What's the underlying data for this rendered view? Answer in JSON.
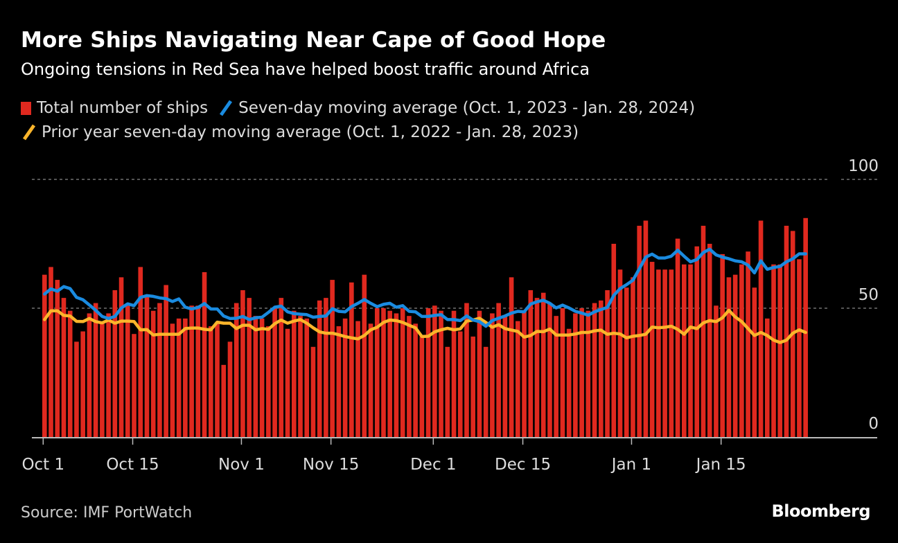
{
  "title": "More Ships Navigating Near Cape of Good Hope",
  "subtitle": "Ongoing tensions in Red Sea have helped boost traffic around Africa",
  "legend": [
    {
      "label": "Total number of ships",
      "color": "#e0291f",
      "icon": "square-swatch-icon"
    },
    {
      "label": "Seven-day moving average (Oct. 1, 2023 - Jan. 28, 2024)",
      "color": "#1a8be0",
      "icon": "line-swatch-icon"
    },
    {
      "label": "Prior year seven-day moving average (Oct. 1, 2022 - Jan. 28, 2023)",
      "color": "#fbb52b",
      "icon": "line-swatch-icon"
    }
  ],
  "source": "Source: IMF PortWatch",
  "brand": "Bloomberg",
  "chart_data": {
    "type": "bar",
    "title": "More Ships Navigating Near Cape of Good Hope",
    "subtitle": "Ongoing tensions in Red Sea have helped boost traffic around Africa",
    "xlabel": "",
    "ylabel": "",
    "ylim": [
      0,
      100
    ],
    "yticks": [
      0,
      50,
      100
    ],
    "ytick_labels": [
      "0",
      "50",
      "100"
    ],
    "grid": true,
    "legend_position": "top-left",
    "x_start": "Oct 1",
    "x_end": "Jan 28",
    "num_days": 120,
    "xticks": [
      {
        "day": 0,
        "label": "Oct 1"
      },
      {
        "day": 14,
        "label": "Oct 15"
      },
      {
        "day": 31,
        "label": "Nov 1"
      },
      {
        "day": 45,
        "label": "Nov 15"
      },
      {
        "day": 61,
        "label": "Dec 1"
      },
      {
        "day": 75,
        "label": "Dec 15"
      },
      {
        "day": 92,
        "label": "Jan 1"
      },
      {
        "day": 106,
        "label": "Jan 15"
      }
    ],
    "series": [
      {
        "name": "Total number of ships",
        "type": "bar",
        "color": "#e0291f",
        "values": [
          63,
          66,
          61,
          54,
          49,
          37,
          41,
          48,
          52,
          44,
          48,
          57,
          62,
          51,
          40,
          66,
          55,
          49,
          52,
          59,
          44,
          46,
          46,
          51,
          51,
          64,
          43,
          44,
          28,
          37,
          52,
          57,
          54,
          47,
          46,
          43,
          50,
          54,
          42,
          49,
          47,
          46,
          35,
          53,
          54,
          61,
          43,
          46,
          60,
          45,
          63,
          44,
          50,
          50,
          49,
          48,
          50,
          47,
          44,
          39,
          50,
          51,
          49,
          35,
          49,
          41,
          52,
          39,
          49,
          35,
          48,
          52,
          47,
          62,
          45,
          49,
          57,
          54,
          56,
          52,
          47,
          50,
          42,
          48,
          50,
          49,
          52,
          53,
          57,
          75,
          65,
          58,
          62,
          82,
          84,
          68,
          65,
          65,
          65,
          77,
          67,
          67,
          74,
          82,
          75,
          51,
          71,
          62,
          63,
          67,
          72,
          58,
          84,
          46,
          67,
          67,
          82,
          80,
          69,
          85
        ]
      },
      {
        "name": "Seven-day moving average (Oct. 1, 2023 - Jan. 28, 2024)",
        "type": "line",
        "color": "#1a8be0",
        "values": [
          55.5,
          57.5,
          56.6,
          58.4,
          57.6,
          54.2,
          53.3,
          51.3,
          49.2,
          46.8,
          46.0,
          46.8,
          50.1,
          51.7,
          51.0,
          54.2,
          54.9,
          54.6,
          54.0,
          53.7,
          52.6,
          53.6,
          50.4,
          49.7,
          50.3,
          51.8,
          49.7,
          49.7,
          47.0,
          46.0,
          46.1,
          46.8,
          45.6,
          46.3,
          46.5,
          48.4,
          50.4,
          50.8,
          48.6,
          47.9,
          47.7,
          47.5,
          46.5,
          46.8,
          47.0,
          49.8,
          48.8,
          48.6,
          50.6,
          51.9,
          53.4,
          51.9,
          50.6,
          51.5,
          51.9,
          50.4,
          51.0,
          48.8,
          48.6,
          46.8,
          46.8,
          47.2,
          47.5,
          45.6,
          45.6,
          45.2,
          47.0,
          45.4,
          44.8,
          43.0,
          45.2,
          46.1,
          47.0,
          48.1,
          48.8,
          48.6,
          51.6,
          52.5,
          53.1,
          51.9,
          50.1,
          51.2,
          50.1,
          48.8,
          48.1,
          47.3,
          48.6,
          49.5,
          50.3,
          55.0,
          57.6,
          59.1,
          60.9,
          65.3,
          69.8,
          71.0,
          69.5,
          69.5,
          70.2,
          72.5,
          70.2,
          68.0,
          68.9,
          71.6,
          72.9,
          70.7,
          69.8,
          69.2,
          68.4,
          68.0,
          66.7,
          63.7,
          68.4,
          65.1,
          65.8,
          66.2,
          68.0,
          69.2,
          71.1,
          71.1
        ]
      },
      {
        "name": "Prior year seven-day moving average (Oct. 1, 2022 - Jan. 28, 2023)",
        "type": "line",
        "color": "#fbb52b",
        "values": [
          45.6,
          49.0,
          49.0,
          47.2,
          47.0,
          44.9,
          44.8,
          46.0,
          44.8,
          44.3,
          45.4,
          44.2,
          45.0,
          45.0,
          44.8,
          41.6,
          41.7,
          39.6,
          39.9,
          39.9,
          39.9,
          39.9,
          42.1,
          42.3,
          42.3,
          41.8,
          41.6,
          44.6,
          44.2,
          44.2,
          42.1,
          43.4,
          43.4,
          41.6,
          42.1,
          41.8,
          44.0,
          45.4,
          44.2,
          45.0,
          45.6,
          44.2,
          42.4,
          40.8,
          40.3,
          40.3,
          39.7,
          39.0,
          38.5,
          38.1,
          39.4,
          41.6,
          42.6,
          44.5,
          45.4,
          45.2,
          44.5,
          43.4,
          42.4,
          39.0,
          39.1,
          40.8,
          41.6,
          42.2,
          41.6,
          42.0,
          45.0,
          45.4,
          46.1,
          44.5,
          42.6,
          43.6,
          42.1,
          41.5,
          41.0,
          38.8,
          39.4,
          41.0,
          40.9,
          41.9,
          39.6,
          39.6,
          39.6,
          40.0,
          40.6,
          40.6,
          41.2,
          41.5,
          39.9,
          40.3,
          40.0,
          38.5,
          39.1,
          39.4,
          39.9,
          42.7,
          42.4,
          42.6,
          43.0,
          41.8,
          39.9,
          42.7,
          42.1,
          44.3,
          45.2,
          44.8,
          46.3,
          49.2,
          46.6,
          44.8,
          42.1,
          39.4,
          40.6,
          39.4,
          37.6,
          36.7,
          37.6,
          40.3,
          41.6,
          40.6
        ]
      }
    ]
  }
}
